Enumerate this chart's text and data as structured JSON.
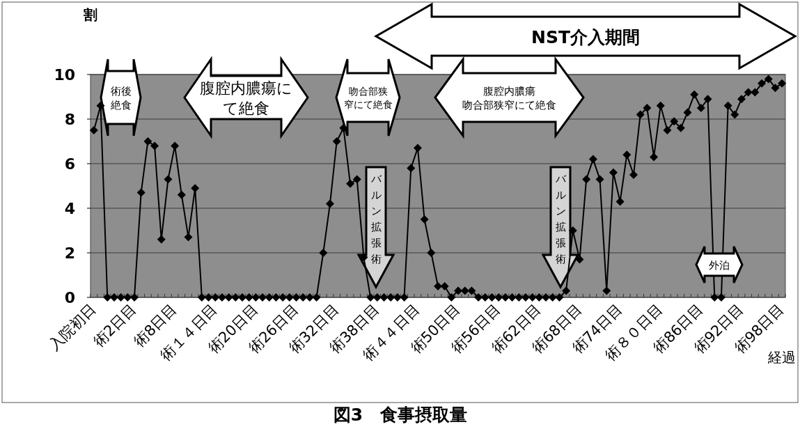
{
  "chart_data": {
    "type": "line",
    "title": "図3　食事摂取量",
    "xlabel": "経過",
    "ylabel": "割",
    "categories": [
      "入院初日",
      null,
      null,
      null,
      null,
      null,
      "術2日目",
      null,
      null,
      null,
      null,
      null,
      "術8日目",
      null,
      null,
      null,
      null,
      null,
      "術１４日目",
      null,
      null,
      null,
      null,
      null,
      "術20日目",
      null,
      null,
      null,
      null,
      null,
      "術26日目",
      null,
      null,
      null,
      null,
      null,
      "術32日目",
      null,
      null,
      null,
      null,
      null,
      "術38日目",
      null,
      null,
      null,
      null,
      null,
      "術４４日目",
      null,
      null,
      null,
      null,
      null,
      "術50日目",
      null,
      null,
      null,
      null,
      null,
      "術56日目",
      null,
      null,
      null,
      null,
      null,
      "術62日目",
      null,
      null,
      null,
      null,
      null,
      "術68日目",
      null,
      null,
      null,
      null,
      null,
      "術74日目",
      null,
      null,
      null,
      null,
      null,
      "術８０日目",
      null,
      null,
      null,
      null,
      null,
      "術86日目",
      null,
      null,
      null,
      null,
      null,
      "術92日目",
      null,
      null,
      null,
      null,
      null,
      "術98日目"
    ],
    "values": [
      7.5,
      8.6,
      0,
      0,
      0,
      0,
      0,
      4.7,
      7.0,
      6.8,
      2.6,
      5.3,
      6.8,
      4.6,
      2.7,
      4.9,
      0,
      0,
      0,
      0,
      0,
      0,
      0,
      0,
      0,
      0,
      0,
      0,
      0,
      0,
      0,
      0,
      0,
      0,
      2.0,
      4.2,
      7.0,
      7.6,
      5.1,
      5.3,
      1.8,
      0,
      0,
      0,
      0,
      0,
      0,
      5.8,
      6.7,
      3.5,
      2.0,
      0.5,
      0.5,
      0,
      0.3,
      0.3,
      0.3,
      0,
      0,
      0,
      0,
      0,
      0,
      0,
      0,
      0,
      0,
      0,
      0,
      0,
      0.3,
      3.0,
      1.7,
      5.3,
      6.2,
      5.3,
      0.3,
      5.6,
      4.3,
      6.4,
      5.5,
      8.2,
      8.5,
      6.3,
      8.6,
      7.5,
      7.9,
      7.6,
      8.3,
      9.1,
      8.5,
      8.9,
      0,
      0,
      8.6,
      8.2,
      8.9,
      9.2,
      9.2,
      9.6,
      9.8,
      9.4,
      9.6
    ],
    "color": "#000000",
    "marker": "diamond",
    "grid": "y",
    "ylim": [
      0,
      10
    ],
    "yticks": [
      0,
      2,
      4,
      6,
      8,
      10
    ],
    "annotations": [
      "術後絶食",
      "腹腔内膿瘍にて絶食",
      "吻合部狭窄にて絶食",
      "腹腔内膿瘍吻合部狭窄にて絶食",
      "NST介入期間",
      "バルン拡張術",
      "バルン拡張術",
      "外泊"
    ]
  }
}
